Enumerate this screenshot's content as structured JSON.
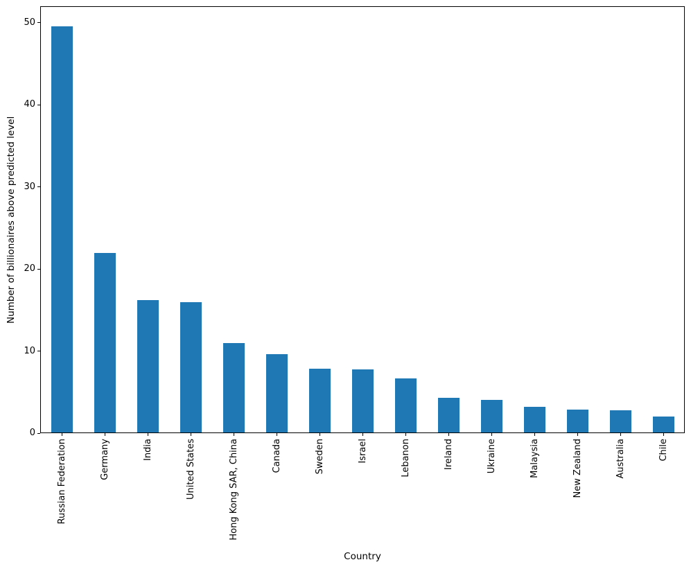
{
  "figure": {
    "background_color": "#ffffff",
    "frame_color": "#000000",
    "text_color": "#000000"
  },
  "chart_data": {
    "type": "bar",
    "title": "",
    "xlabel": "Country",
    "ylabel": "Number of billionaires above predicted level",
    "categories": [
      "Russian Federation",
      "Germany",
      "India",
      "United States",
      "Hong Kong SAR, China",
      "Canada",
      "Sweden",
      "Israel",
      "Lebanon",
      "Ireland",
      "Ukraine",
      "Malaysia",
      "New Zealand",
      "Australia",
      "Chile"
    ],
    "values": [
      49.5,
      21.9,
      16.1,
      15.9,
      10.9,
      9.5,
      7.8,
      7.7,
      6.6,
      4.2,
      4.0,
      3.1,
      2.75,
      2.7,
      1.95
    ],
    "yticks": [
      0,
      10,
      20,
      30,
      40,
      50
    ],
    "ylim": [
      0,
      52
    ],
    "bar_color": "#1f77b4",
    "bar_width_fraction": 0.5,
    "x_tick_label_rotation": 90,
    "grid": false,
    "legend": "none"
  }
}
